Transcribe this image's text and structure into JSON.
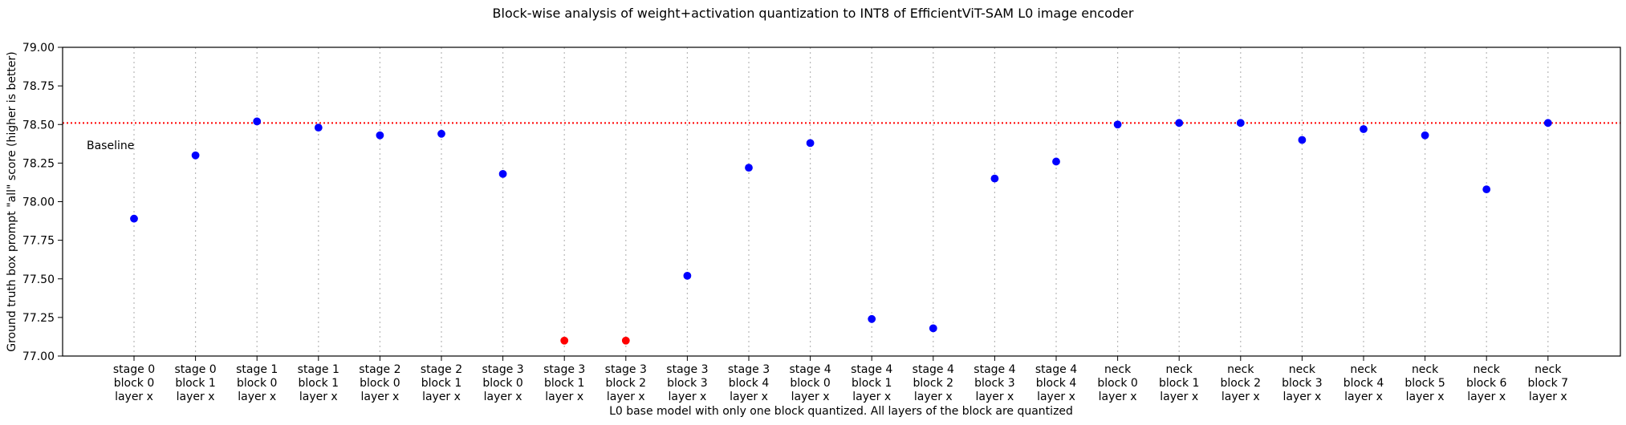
{
  "chart_data": {
    "type": "scatter",
    "title": "Block-wise analysis of weight+activation quantization to INT8 of EfficientViT-SAM L0 image encoder",
    "xlabel": "L0 base model with only one block quantized. All layers of the block are quantized",
    "ylabel": "Ground truth box prompt \"all\" score (higher is better)",
    "ylim": [
      77.0,
      79.0
    ],
    "yticks": [
      "77.00",
      "77.25",
      "77.50",
      "77.75",
      "78.00",
      "78.25",
      "78.50",
      "78.75",
      "79.00"
    ],
    "grid": "x-dotted",
    "baseline": {
      "value": 78.51,
      "label": "Baseline",
      "color": "#ff0000"
    },
    "point_color": "#0000ff",
    "outlier_color": "#ff0000",
    "categories": [
      [
        "stage 0",
        "block 0",
        "layer x"
      ],
      [
        "stage 0",
        "block 1",
        "layer x"
      ],
      [
        "stage 1",
        "block 0",
        "layer x"
      ],
      [
        "stage 1",
        "block 1",
        "layer x"
      ],
      [
        "stage 2",
        "block 0",
        "layer x"
      ],
      [
        "stage 2",
        "block 1",
        "layer x"
      ],
      [
        "stage 3",
        "block 0",
        "layer x"
      ],
      [
        "stage 3",
        "block 1",
        "layer x"
      ],
      [
        "stage 3",
        "block 2",
        "layer x"
      ],
      [
        "stage 3",
        "block 3",
        "layer x"
      ],
      [
        "stage 3",
        "block 4",
        "layer x"
      ],
      [
        "stage 4",
        "block 0",
        "layer x"
      ],
      [
        "stage 4",
        "block 1",
        "layer x"
      ],
      [
        "stage 4",
        "block 2",
        "layer x"
      ],
      [
        "stage 4",
        "block 3",
        "layer x"
      ],
      [
        "stage 4",
        "block 4",
        "layer x"
      ],
      [
        "neck",
        "block 0",
        "layer x"
      ],
      [
        "neck",
        "block 1",
        "layer x"
      ],
      [
        "neck",
        "block 2",
        "layer x"
      ],
      [
        "neck",
        "block 3",
        "layer x"
      ],
      [
        "neck",
        "block 4",
        "layer x"
      ],
      [
        "neck",
        "block 5",
        "layer x"
      ],
      [
        "neck",
        "block 6",
        "layer x"
      ],
      [
        "neck",
        "block 7",
        "layer x"
      ]
    ],
    "values": [
      77.89,
      78.3,
      78.52,
      78.48,
      78.43,
      78.44,
      78.18,
      77.1,
      77.1,
      77.52,
      78.22,
      78.38,
      77.24,
      77.18,
      78.15,
      78.26,
      78.5,
      78.51,
      78.51,
      78.4,
      78.47,
      78.43,
      78.08,
      78.51
    ],
    "outliers": [
      7,
      8
    ]
  }
}
